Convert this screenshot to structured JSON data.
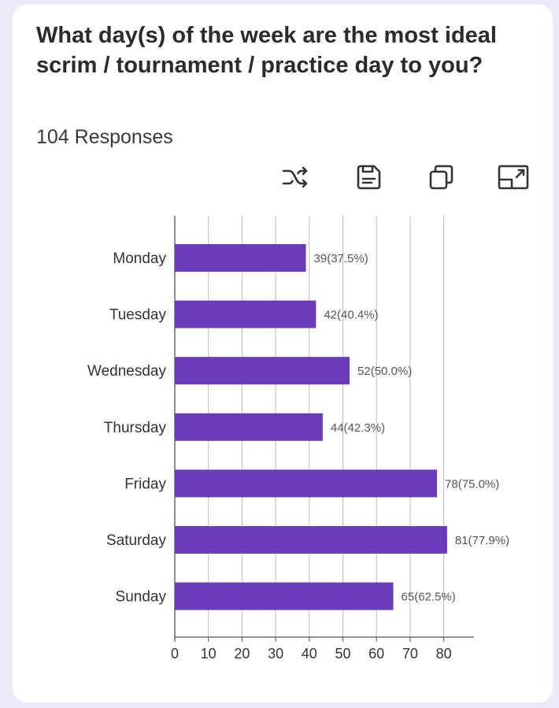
{
  "card": {
    "title": "What day(s) of the week are the most ideal scrim / tournament / practice day to you?",
    "responses": "104 Responses"
  },
  "toolbar": {
    "icons": [
      "shuffle-icon",
      "save-icon",
      "copy-icon",
      "expand-icon"
    ]
  },
  "colors": {
    "bar": "#6a3bbb",
    "grid": "#bdbdbd",
    "text": "#333333"
  },
  "chart_data": {
    "type": "bar",
    "orientation": "horizontal",
    "categories": [
      "Monday",
      "Tuesday",
      "Wednesday",
      "Thursday",
      "Friday",
      "Saturday",
      "Sunday"
    ],
    "values": [
      39,
      42,
      52,
      44,
      78,
      81,
      65
    ],
    "data_labels": [
      "39(37.5%)",
      "42(40.4%)",
      "52(50.0%)",
      "44(42.3%)",
      "78(75.0%)",
      "81(77.9%)",
      "65(62.5%)"
    ],
    "xticks": [
      0,
      10,
      20,
      30,
      40,
      50,
      60,
      70,
      80
    ],
    "xlim": [
      0,
      89
    ],
    "grid": true,
    "legend": false
  }
}
